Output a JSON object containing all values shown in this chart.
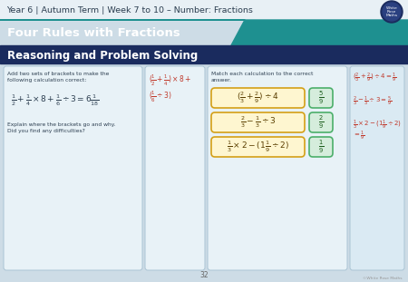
{
  "bg_color": "#cddce6",
  "header_bg": "#e8f0f5",
  "teal_color": "#1e9090",
  "navy_color": "#1a2b5e",
  "title_text": "Year 6 | Autumn Term | Week 7 to 10 – Number: Fractions",
  "subtitle1": "Four Rules with Fractions",
  "subtitle2": "Reasoning and Problem Solving",
  "panel_bg": "#e8f2f7",
  "panel_bg2": "#daeaf3",
  "panel_border": "#aac4d4",
  "yellow_box_fill": "#fef6d0",
  "yellow_box_border": "#d4a017",
  "green_box_fill": "#d5eddc",
  "green_box_border": "#4caf6a",
  "red_text": "#c0392b",
  "dark_text": "#2c3e50",
  "footer_text": "32",
  "wrm_circle_bg": "#1a2b5e",
  "figw": 4.5,
  "figh": 3.11,
  "dpi": 100
}
